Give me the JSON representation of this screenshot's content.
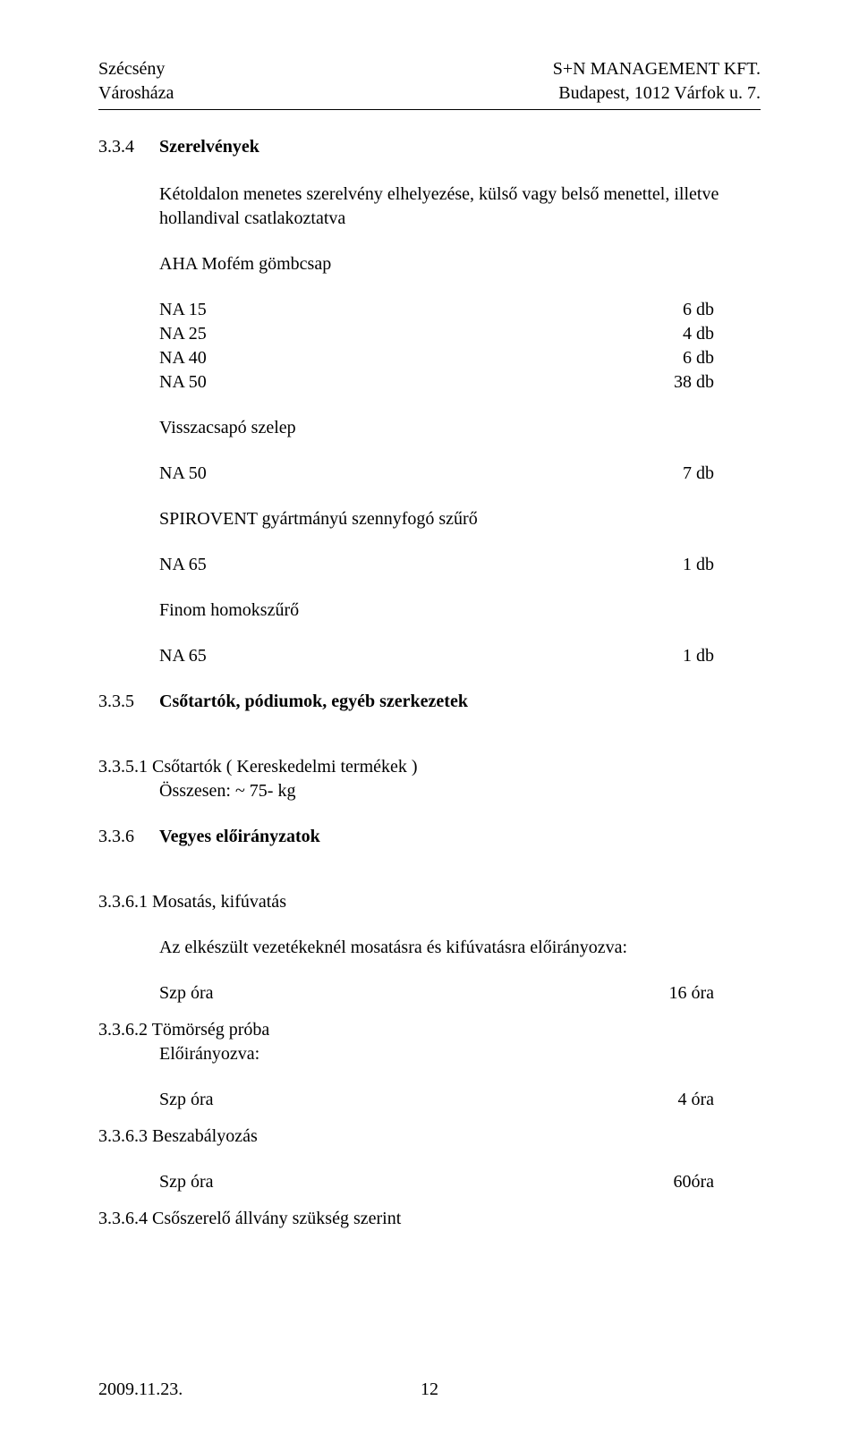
{
  "header": {
    "left_line1": "Szécsény",
    "left_line2": "Városháza",
    "right_line1": "S+N MANAGEMENT KFT.",
    "right_line2": "Budapest, 1012 Várfok u. 7."
  },
  "sec_334": {
    "num": "3.3.4",
    "title": "Szerelvények",
    "intro_line1": "Kétoldalon menetes szerelvény elhelyezése, külső vagy belső menettel, illetve",
    "intro_line2": "hollandival csatlakoztatva",
    "group1": {
      "heading": "AHA Mofém gömbcsap",
      "items": [
        {
          "k": "NA 15",
          "v": "6 db"
        },
        {
          "k": "NA 25",
          "v": "4 db"
        },
        {
          "k": "NA 40",
          "v": "6 db"
        },
        {
          "k": "NA 50",
          "v": "38 db"
        }
      ]
    },
    "group2": {
      "heading": "Visszacsapó szelep",
      "items": [
        {
          "k": "NA 50",
          "v": "7 db"
        }
      ]
    },
    "group3": {
      "heading": "SPIROVENT gyártmányú szennyfogó szűrő",
      "items": [
        {
          "k": "NA 65",
          "v": "1 db"
        }
      ]
    },
    "group4": {
      "heading": "Finom homokszűrő",
      "items": [
        {
          "k": "NA 65",
          "v": "1 db"
        }
      ]
    }
  },
  "sec_335": {
    "num": "3.3.5",
    "title": "Csőtartók, pódiumok, egyéb szerkezetek",
    "sub1_num": "3.3.5.1",
    "sub1_title": "Csőtartók ( Kereskedelmi termékek )",
    "sub1_line2": "Összesen: ~ 75-  kg"
  },
  "sec_336": {
    "num": "3.3.6",
    "title": "Vegyes előirányzatok",
    "sub1_num": "3.3.6.1",
    "sub1_title": "Mosatás, kifúvatás",
    "sub1_text": "Az elkészült vezetékeknél mosatásra és kifúvatásra előirányozva:",
    "sub1_item": {
      "k": "Szp óra",
      "v": "16 óra"
    },
    "sub2_num": "3.3.6.2",
    "sub2_title": "Tömörség próba",
    "sub2_line2": "Előirányozva:",
    "sub2_item": {
      "k": "Szp óra",
      "v": "4 óra"
    },
    "sub3_num": "3.3.6.3",
    "sub3_title": "Beszabályozás",
    "sub3_item": {
      "k": "Szp óra",
      "v": "60óra"
    },
    "sub4_num": "3.3.6.4",
    "sub4_title": "Csőszerelő állvány szükség szerint"
  },
  "footer": {
    "date": "2009.11.23.",
    "page": "12"
  }
}
